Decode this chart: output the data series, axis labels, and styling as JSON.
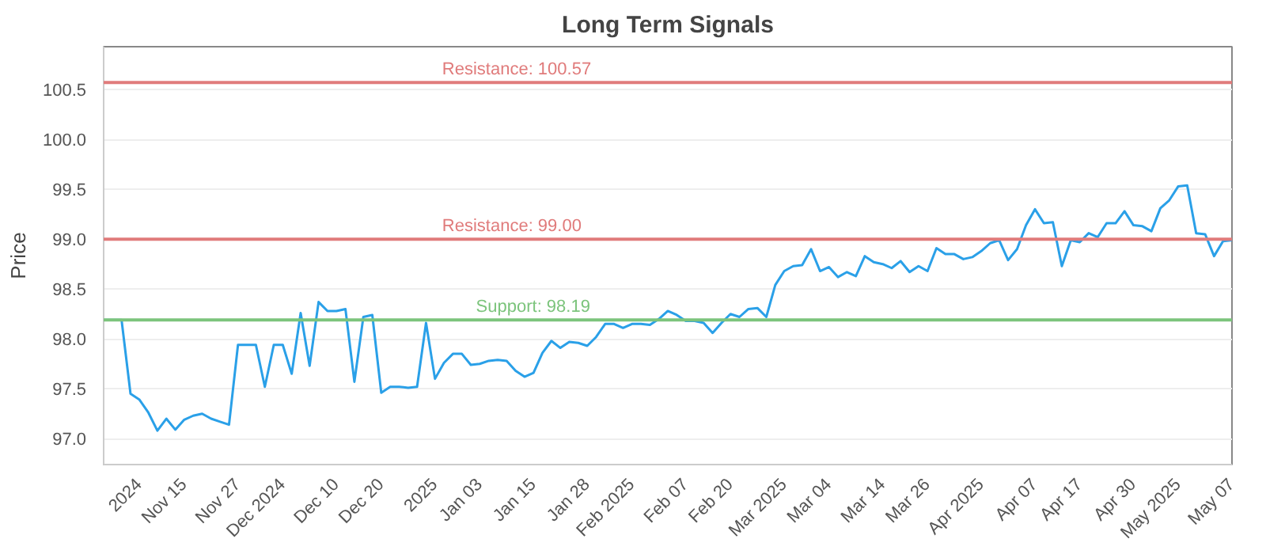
{
  "chart_data": {
    "type": "line",
    "title": "Long Term Signals",
    "ylabel": "Price",
    "categories": [
      null,
      null,
      null,
      null,
      "2024",
      null,
      null,
      null,
      null,
      "Nov 15",
      null,
      null,
      null,
      null,
      null,
      "Nov 27",
      null,
      null,
      null,
      null,
      "Dec 2024",
      null,
      null,
      null,
      null,
      null,
      "Dec 10",
      null,
      null,
      null,
      null,
      "Dec 20",
      null,
      null,
      null,
      null,
      null,
      "2025",
      null,
      null,
      null,
      null,
      "Jan 03",
      null,
      null,
      null,
      null,
      null,
      "Jan 15",
      null,
      null,
      null,
      null,
      null,
      "Jan 28",
      null,
      null,
      null,
      null,
      "Feb 2025",
      null,
      null,
      null,
      null,
      null,
      "Feb 07",
      null,
      null,
      null,
      null,
      "Feb 20",
      null,
      null,
      null,
      null,
      null,
      "Mar 2025",
      null,
      null,
      null,
      null,
      "Mar 04",
      null,
      null,
      null,
      null,
      null,
      "Mar 14",
      null,
      null,
      null,
      null,
      "Mar 26",
      null,
      null,
      null,
      null,
      null,
      "Apr 2025",
      null,
      null,
      null,
      null,
      null,
      "Apr 07",
      null,
      null,
      null,
      null,
      "Apr 17",
      null,
      null,
      null,
      null,
      null,
      "Apr 30",
      null,
      null,
      null,
      null,
      "May 2025",
      null,
      null,
      null,
      null,
      null,
      "May 07"
    ],
    "series": [
      {
        "color": "#2aa0e8",
        "values": [
          98.19,
          98.19,
          98.19,
          97.45,
          97.39,
          97.26,
          97.08,
          97.2,
          97.09,
          97.19,
          97.23,
          97.25,
          97.2,
          97.17,
          97.14,
          97.94,
          97.94,
          97.94,
          97.52,
          97.94,
          97.94,
          97.65,
          98.26,
          97.73,
          98.37,
          98.28,
          98.28,
          98.3,
          97.57,
          98.22,
          98.24,
          97.46,
          97.52,
          97.52,
          97.51,
          97.52,
          98.16,
          97.6,
          97.76,
          97.85,
          97.85,
          97.74,
          97.75,
          97.78,
          97.79,
          97.78,
          97.68,
          97.62,
          97.66,
          97.86,
          97.98,
          97.91,
          97.97,
          97.96,
          97.93,
          98.02,
          98.15,
          98.15,
          98.11,
          98.15,
          98.15,
          98.14,
          98.2,
          98.28,
          98.24,
          98.18,
          98.18,
          98.16,
          98.06,
          98.16,
          98.25,
          98.22,
          98.3,
          98.31,
          98.22,
          98.54,
          98.68,
          98.73,
          98.74,
          98.9,
          98.68,
          98.72,
          98.62,
          98.67,
          98.63,
          98.83,
          98.77,
          98.75,
          98.71,
          98.78,
          98.67,
          98.73,
          98.68,
          98.91,
          98.85,
          98.85,
          98.8,
          98.82,
          98.88,
          98.96,
          98.99,
          98.79,
          98.9,
          99.14,
          99.3,
          99.16,
          99.17,
          98.73,
          98.99,
          98.97,
          99.06,
          99.02,
          99.16,
          99.16,
          99.28,
          99.14,
          99.13,
          99.08,
          99.31,
          99.39,
          99.53,
          99.54,
          99.06,
          99.05,
          98.83,
          98.98,
          98.99
        ]
      }
    ],
    "ylim": [
      96.74,
      100.93
    ],
    "yticks": [
      {
        "value": 97,
        "label": "97.0"
      },
      97.5,
      {
        "value": 98,
        "label": "98.0"
      },
      98.5,
      {
        "value": 99,
        "label": "99.0"
      },
      99.5,
      {
        "value": 100,
        "label": "100.0"
      },
      100.5
    ],
    "ref_lines": [
      {
        "axis": "y",
        "value": 100.57,
        "label": "Resistance: 100.57",
        "color": "#e07b7b"
      },
      {
        "axis": "y",
        "value": 99.0,
        "label": "Resistance: 99.00",
        "color": "#e07b7b"
      },
      {
        "axis": "y",
        "value": 98.19,
        "label": "Support: 98.19",
        "color": "#7cc47c"
      }
    ],
    "grid": "y",
    "marker": "none",
    "line_style": "solid"
  }
}
